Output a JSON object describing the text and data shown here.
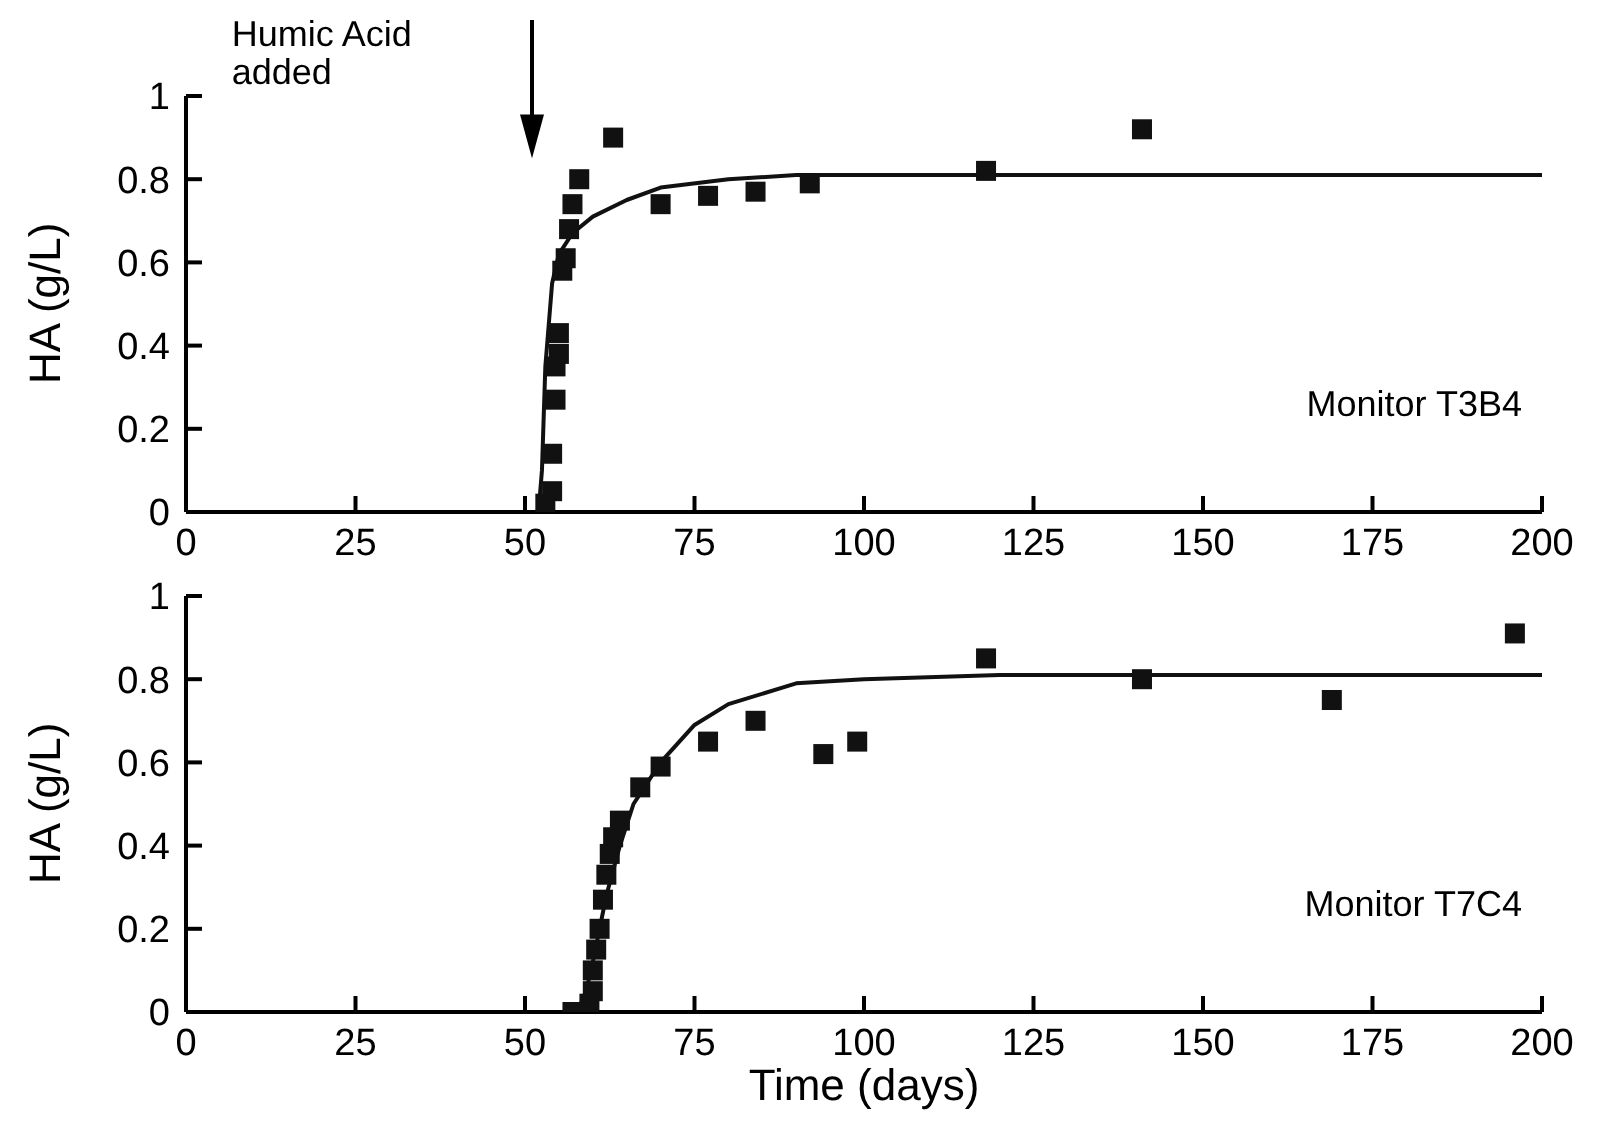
{
  "chart_data": [
    {
      "type": "scatter",
      "ylabel": "HA (g/L)",
      "xlim": [
        0,
        200
      ],
      "ylim": [
        0,
        1
      ],
      "xticks": [
        0,
        25,
        50,
        75,
        100,
        125,
        150,
        175,
        200
      ],
      "yticks": [
        0,
        0.2,
        0.4,
        0.6,
        0.8,
        1
      ],
      "grid": false,
      "legend": false,
      "marker": "square",
      "annotations": [
        "Humic Acid added",
        "Monitor T3B4"
      ],
      "series": [
        {
          "color": "#111111",
          "x": [
            53,
            54,
            54,
            54.5,
            54.5,
            55,
            55,
            55.5,
            56,
            56.5,
            57,
            58,
            63,
            70,
            77,
            84,
            92,
            118,
            141
          ],
          "values": [
            0.02,
            0.05,
            0.14,
            0.27,
            0.35,
            0.38,
            0.43,
            0.58,
            0.61,
            0.68,
            0.74,
            0.8,
            0.9,
            0.74,
            0.76,
            0.77,
            0.79,
            0.82,
            0.92
          ]
        },
        {
          "type": "line",
          "color": "#111111",
          "marker": "none",
          "line_style": "solid",
          "x": [
            0,
            52,
            52.5,
            53,
            54,
            55,
            57,
            60,
            65,
            70,
            80,
            90,
            100,
            200
          ],
          "values": [
            0,
            0,
            0.1,
            0.35,
            0.55,
            0.62,
            0.67,
            0.71,
            0.75,
            0.78,
            0.8,
            0.81,
            0.81,
            0.81
          ]
        }
      ]
    },
    {
      "type": "scatter",
      "xlabel": "Time (days)",
      "ylabel": "HA (g/L)",
      "xlim": [
        0,
        200
      ],
      "ylim": [
        0,
        1
      ],
      "xticks": [
        0,
        25,
        50,
        75,
        100,
        125,
        150,
        175,
        200
      ],
      "yticks": [
        0,
        0.2,
        0.4,
        0.6,
        0.8,
        1
      ],
      "grid": false,
      "legend": false,
      "marker": "square",
      "annotations": [
        "Monitor T7C4"
      ],
      "series": [
        {
          "color": "#111111",
          "x": [
            57,
            59.5,
            60,
            60,
            60.5,
            61,
            61.5,
            62,
            62.5,
            63,
            64,
            67,
            70,
            77,
            84,
            94,
            99,
            118,
            141,
            169,
            196
          ],
          "values": [
            0,
            0.02,
            0.05,
            0.1,
            0.15,
            0.2,
            0.27,
            0.33,
            0.38,
            0.42,
            0.46,
            0.54,
            0.59,
            0.65,
            0.7,
            0.62,
            0.65,
            0.85,
            0.8,
            0.75,
            0.91
          ]
        },
        {
          "type": "line",
          "color": "#111111",
          "marker": "none",
          "line_style": "solid",
          "x": [
            0,
            57,
            58,
            59,
            60,
            61,
            62,
            64,
            66,
            70,
            75,
            80,
            90,
            100,
            120,
            200
          ],
          "values": [
            0,
            0,
            0.01,
            0.05,
            0.12,
            0.2,
            0.28,
            0.4,
            0.5,
            0.6,
            0.69,
            0.74,
            0.79,
            0.8,
            0.81,
            0.81
          ]
        }
      ]
    }
  ]
}
